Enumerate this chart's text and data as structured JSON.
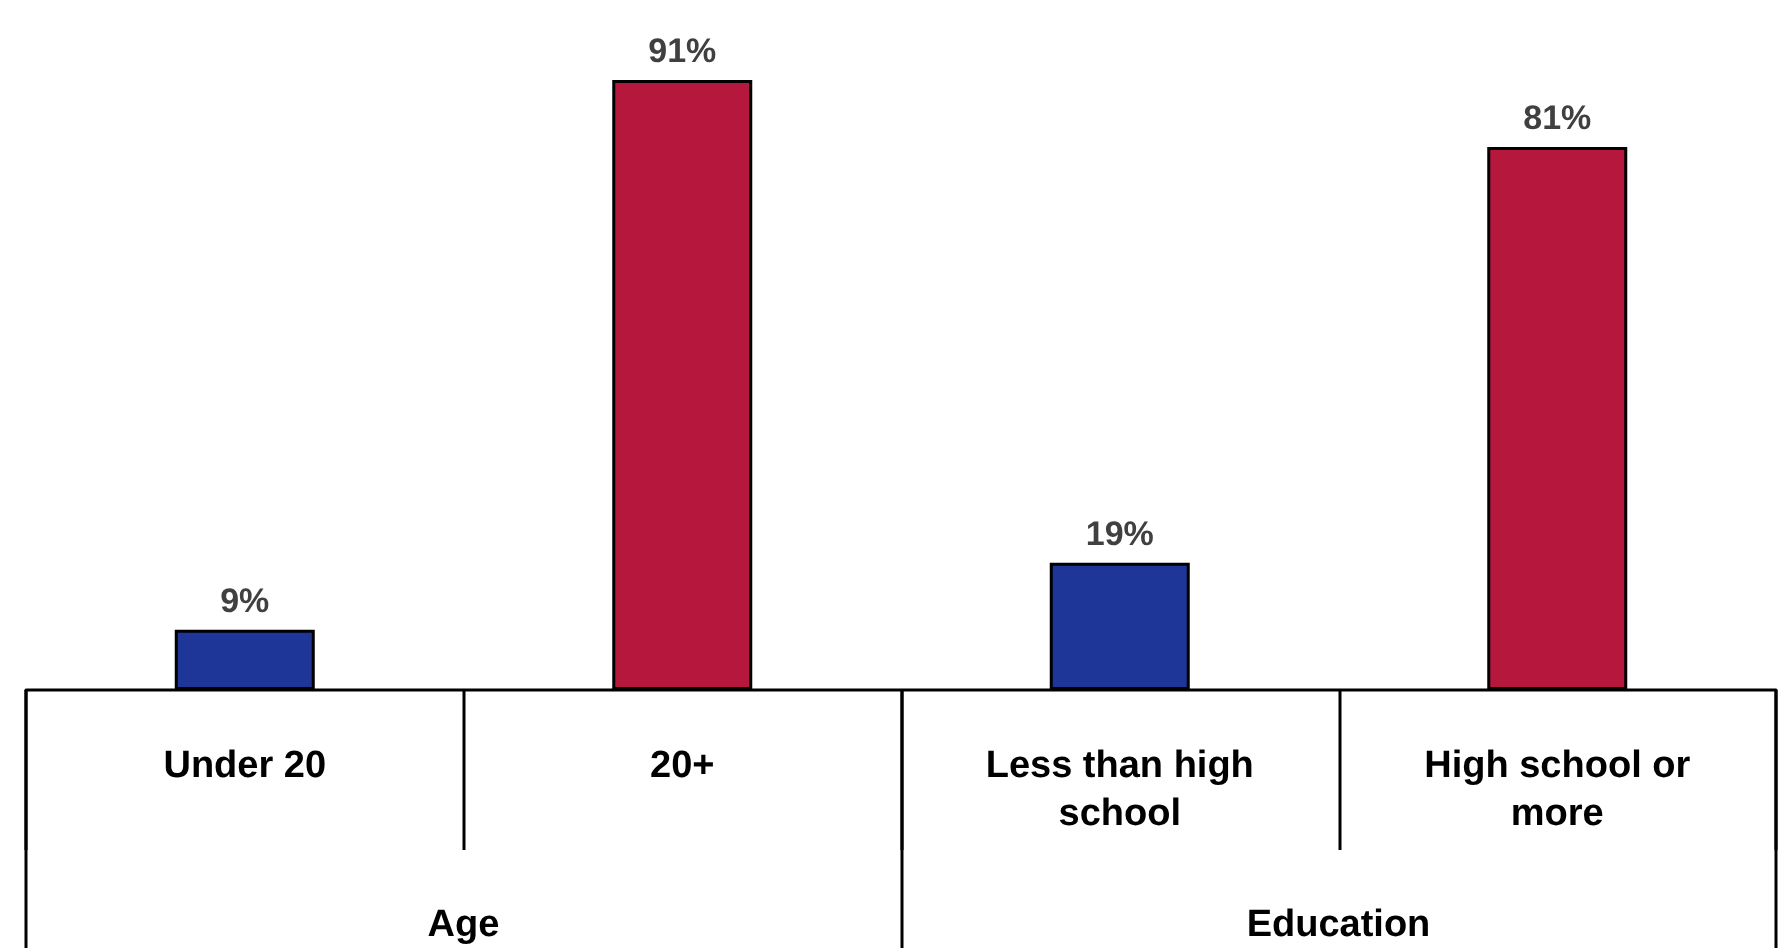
{
  "chart_data": {
    "type": "bar",
    "categories": [
      "Under 20",
      "20+",
      "Less than high\nschool",
      "High school or\nmore"
    ],
    "values": [
      9,
      91,
      19,
      81
    ],
    "colors": [
      "#1f3699",
      "#b5173d",
      "#1f3699",
      "#b5173d"
    ],
    "value_labels": [
      "9%",
      "91%",
      "19%",
      "81%"
    ],
    "annotations": [
      "Age",
      "Education"
    ]
  }
}
